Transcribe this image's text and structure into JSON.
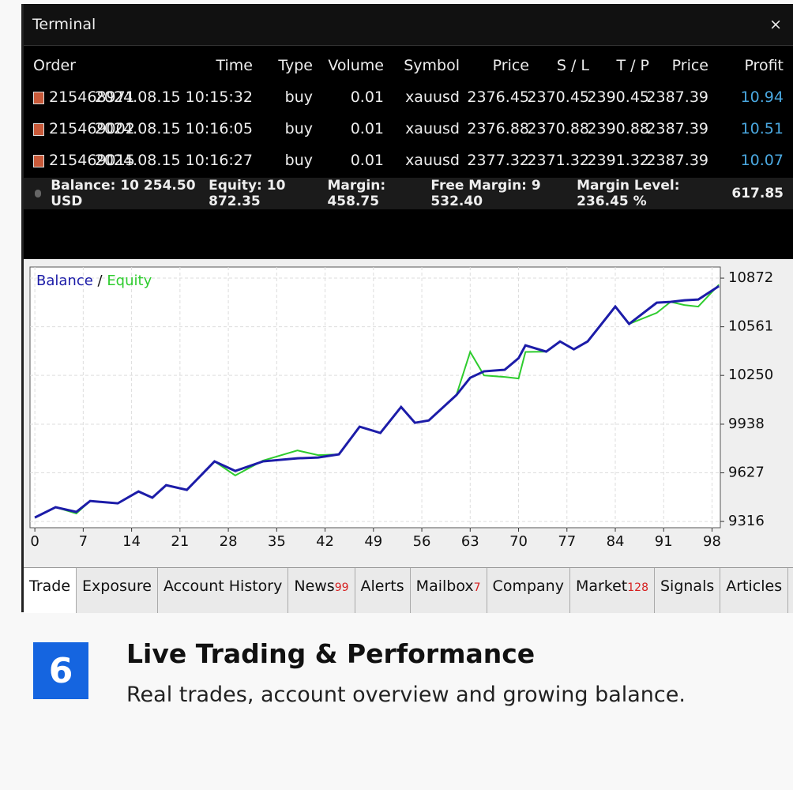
{
  "terminal": {
    "title": "Terminal",
    "columns": [
      "Order",
      "Time",
      "Type",
      "Volume",
      "Symbol",
      "Price",
      "S / L",
      "T / P",
      "Price",
      "Profit"
    ],
    "rows": [
      [
        "215468971",
        "2024.08.15 10:15:32",
        "buy",
        "0.01",
        "xauusd",
        "2376.45",
        "2370.45",
        "2390.45",
        "2387.39",
        "10.94"
      ],
      [
        "215469002",
        "2024.08.15 10:16:05",
        "buy",
        "0.01",
        "xauusd",
        "2376.88",
        "2370.88",
        "2390.88",
        "2387.39",
        "10.51"
      ],
      [
        "215469015",
        "2024.08.15 10:16:27",
        "buy",
        "0.01",
        "xauusd",
        "2377.32",
        "2371.32",
        "2391.32",
        "2387.39",
        "10.07"
      ]
    ],
    "summary": [
      "Balance: 10 254.50 USD",
      "Equity: 10 872.35",
      "Margin: 458.75",
      "Free Margin: 9 532.40",
      "Margin Level: 236.45 %"
    ],
    "total_profit": "617.85"
  },
  "chart_data": {
    "type": "line",
    "x": [
      0,
      3,
      6,
      8,
      12,
      15,
      17,
      19,
      22,
      26,
      29,
      33,
      38,
      41,
      44,
      47,
      50,
      53,
      55,
      57,
      61,
      63,
      65,
      68,
      70,
      71,
      74,
      76,
      78,
      80,
      84,
      86,
      90,
      92,
      94,
      96,
      99
    ],
    "series": [
      {
        "name": "Balance",
        "color": "#1c1ca8",
        "values": [
          9341,
          9407,
          9377,
          9447,
          9432,
          9508,
          9468,
          9548,
          9518,
          9700,
          9639,
          9700,
          9720,
          9725,
          9745,
          9922,
          9882,
          10048,
          9947,
          9962,
          10124,
          10235,
          10276,
          10286,
          10360,
          10442,
          10402,
          10467,
          10417,
          10467,
          10690,
          10579,
          10715,
          10720,
          10730,
          10735,
          10821
        ]
      },
      {
        "name": "Equity",
        "color": "#2ecc2e",
        "values": [
          9341,
          9407,
          9367,
          9447,
          9432,
          9508,
          9468,
          9548,
          9518,
          9700,
          9610,
          9705,
          9770,
          9740,
          9745,
          9922,
          9882,
          10048,
          9947,
          9962,
          10124,
          10400,
          10250,
          10240,
          10230,
          10400,
          10402,
          10467,
          10417,
          10467,
          10690,
          10579,
          10650,
          10720,
          10700,
          10690,
          10830
        ]
      }
    ],
    "xlim": [
      -0.7,
      99.2
    ],
    "ylim": [
      9276,
      10943
    ],
    "xticks": [
      0,
      7,
      14,
      21,
      28,
      35,
      42,
      49,
      56,
      63,
      70,
      77,
      84,
      91,
      98
    ],
    "yticks": [
      9316,
      9627,
      9938,
      10250,
      10561,
      10872
    ],
    "grid": true
  },
  "tabs": [
    {
      "label": "Trade"
    },
    {
      "label": "Exposure"
    },
    {
      "label": "Account History"
    },
    {
      "label": "News",
      "badge": "99"
    },
    {
      "label": "Alerts"
    },
    {
      "label": "Mailbox",
      "badge": "7"
    },
    {
      "label": "Company"
    },
    {
      "label": "Market",
      "badge": "128"
    },
    {
      "label": "Signals"
    },
    {
      "label": "Articles"
    }
  ],
  "caption": {
    "number": "6",
    "title": "Live Trading & Performance",
    "subtitle": "Real trades, account overview and growing balance."
  }
}
